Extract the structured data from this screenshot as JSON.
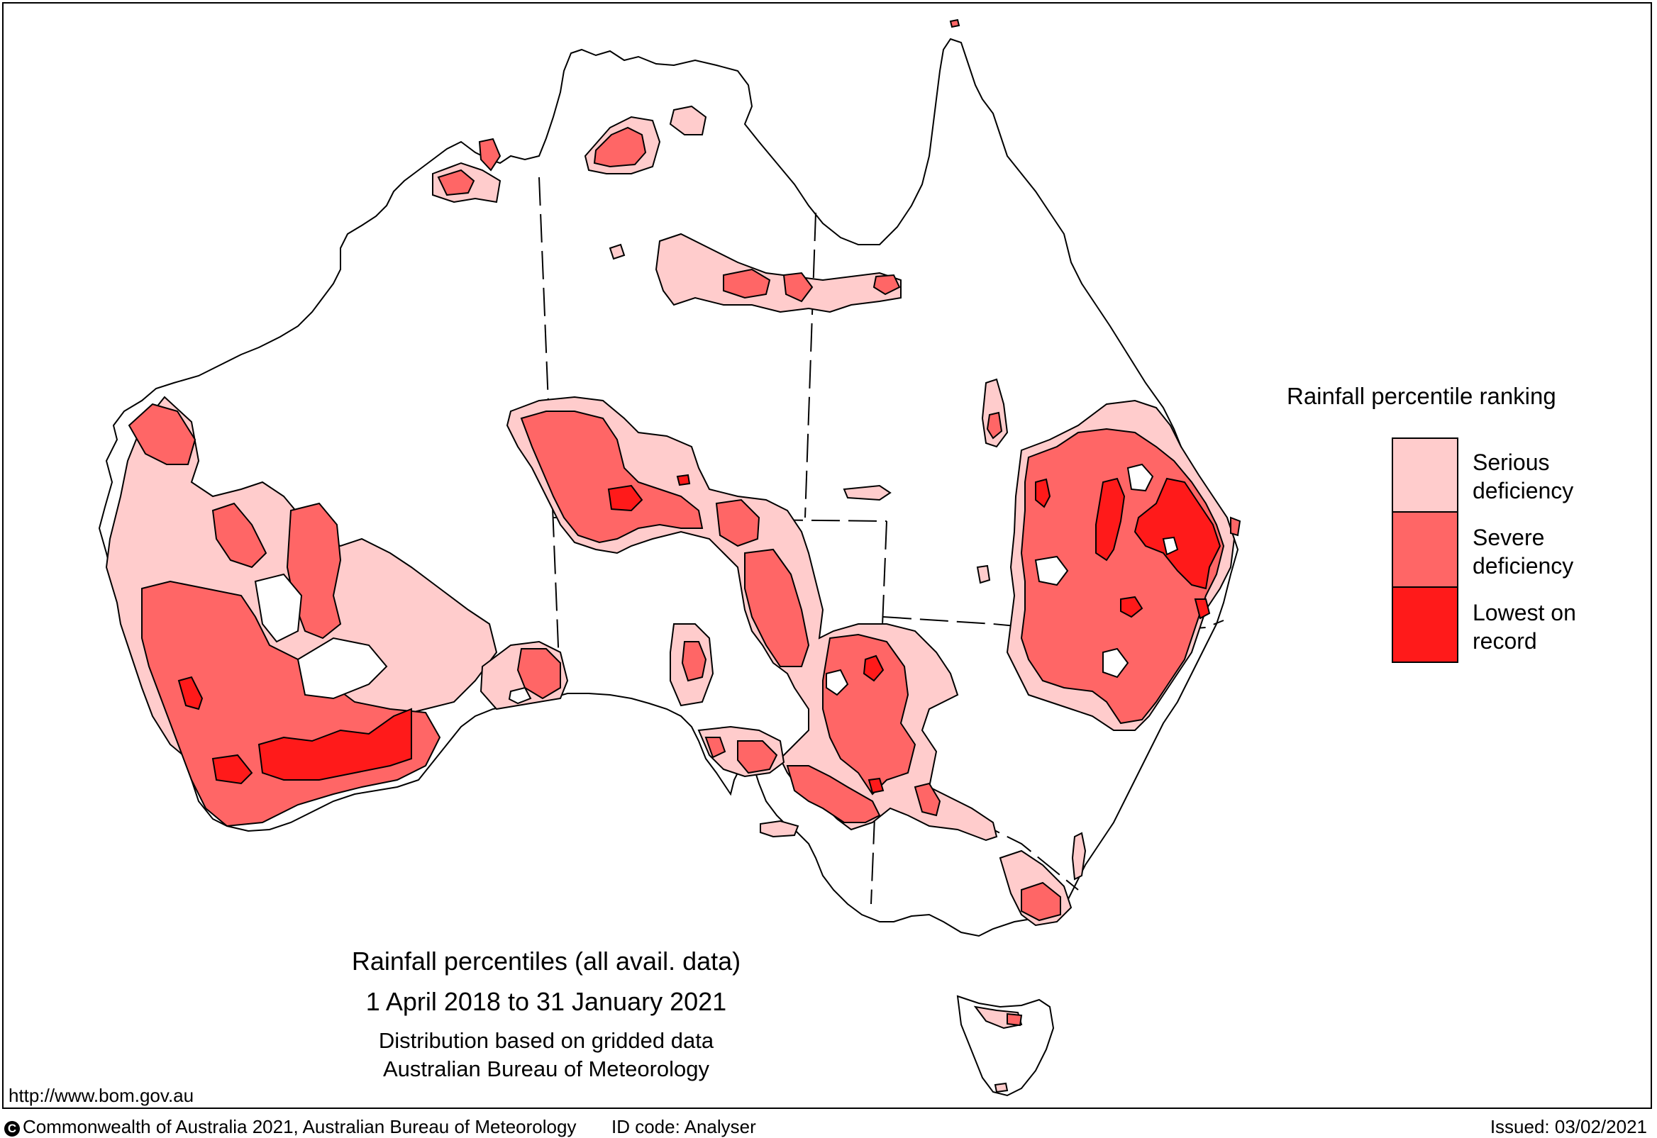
{
  "legend": {
    "title": "Rainfall percentile ranking",
    "items": [
      {
        "line1": "Serious",
        "line2": "deficiency",
        "color": "#FFCCCC"
      },
      {
        "line1": "Severe",
        "line2": "deficiency",
        "color": "#FF6666"
      },
      {
        "line1": "Lowest on",
        "line2": "record",
        "color": "#FF1A1A"
      }
    ]
  },
  "caption": {
    "line1": "Rainfall percentiles (all avail. data)",
    "line2": "1 April 2018 to 31 January 2021",
    "line3": "Distribution based on gridded data",
    "line4": "Australian Bureau of Meteorology"
  },
  "url": "http://www.bom.gov.au",
  "footer": {
    "copyright_symbol": "C",
    "copyright": "Commonwealth of Australia 2021, Australian Bureau of Meteorology",
    "id_code": "ID code: Analyser",
    "issued": "Issued: 03/02/2021"
  },
  "colors": {
    "serious": "#FFCCCC",
    "severe": "#FF6666",
    "lowest": "#FF1A1A",
    "outline": "#000000"
  }
}
